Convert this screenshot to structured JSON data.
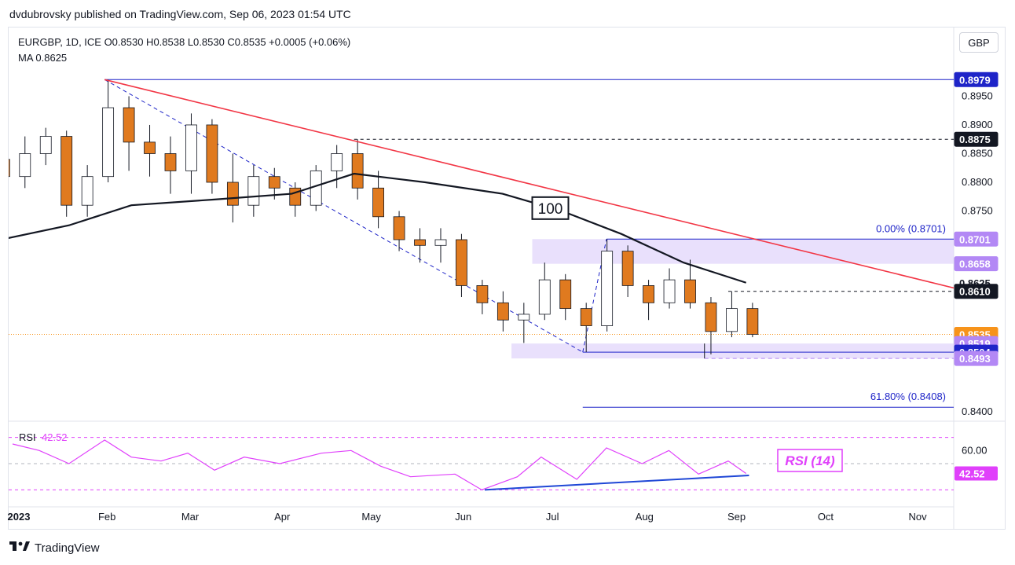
{
  "header": {
    "published": "dvdubrovsky published on TradingView.com, Sep 06, 2023 01:54 UTC",
    "ohlc": "EURGBP, 1D, ICE  O0.8530  H0.8538  L0.8530  C0.8535  +0.0005 (+0.06%)",
    "ma": "MA  0.8625",
    "currency_button": "GBP"
  },
  "footer": {
    "brand": "TradingView"
  },
  "colors": {
    "candle_up": "#ffffff",
    "candle_down": "#e07a1f",
    "wick": "#131722",
    "ma_line": "#131722",
    "trendline": "#f23645",
    "fib": "#1e24c8",
    "zone": "#e1d6fb",
    "rsi": "#e040fb",
    "rsi_support": "#1f47d6"
  },
  "chart_data": {
    "type": "candlestick",
    "symbol": "EURGBP",
    "timeframe": "1D",
    "ylim": [
      0.8385,
      0.9015
    ],
    "y_ticks": [
      "0.8950",
      "0.8900",
      "0.8850",
      "0.8800",
      "0.8750",
      "0.8400"
    ],
    "x_ticks": [
      "2023",
      "Feb",
      "Mar",
      "Apr",
      "May",
      "Jun",
      "Jul",
      "Aug",
      "Sep",
      "Oct",
      "Nov"
    ],
    "price_labels": [
      {
        "value": 0.8979,
        "text": "0.8979",
        "bg": "#1e24c8",
        "fg": "#ffffff"
      },
      {
        "value": 0.8875,
        "text": "0.8875",
        "bg": "#131722",
        "fg": "#ffffff"
      },
      {
        "value": 0.8701,
        "text": "0.8701",
        "bg": "#b388f5",
        "fg": "#ffffff"
      },
      {
        "value": 0.8658,
        "text": "0.8658",
        "bg": "#b388f5",
        "fg": "#ffffff"
      },
      {
        "value": 0.8625,
        "text": "0.8625",
        "bg": "#ffffff",
        "fg": "#131722"
      },
      {
        "value": 0.861,
        "text": "0.8610",
        "bg": "#131722",
        "fg": "#ffffff"
      },
      {
        "value": 0.8535,
        "text": "0.8535",
        "bg": "#f7931a",
        "fg": "#ffffff"
      },
      {
        "value": 0.8519,
        "text": "0.8519",
        "bg": "#b388f5",
        "fg": "#ffffff"
      },
      {
        "value": 0.8504,
        "text": "0.8504",
        "bg": "#1e24c8",
        "fg": "#ffffff"
      },
      {
        "value": 0.8493,
        "text": "0.8493",
        "bg": "#b388f5",
        "fg": "#ffffff"
      }
    ],
    "ma_label": "100",
    "ma_period": 100,
    "ma_value": 0.8625,
    "close": 0.8535,
    "fib_top_label": "0.00% (0.8701)",
    "fib_bottom_label": "61.80% (0.8408)",
    "fib_levels": [
      0.8701,
      0.8408
    ],
    "horizontal_levels": [
      0.8979,
      0.8875,
      0.861,
      0.8504
    ],
    "zones": [
      {
        "from": 0.8658,
        "to": 0.8701
      },
      {
        "from": 0.8493,
        "to": 0.8519
      }
    ],
    "trendline": {
      "from_date": "2023-02-01",
      "from_price": 0.8979,
      "to_date": "2023-11-17",
      "to_price": 0.8612
    },
    "candles_weekly_approx": [
      {
        "week": "2022-12-26",
        "o": 0.884,
        "h": 0.887,
        "l": 0.879,
        "c": 0.881
      },
      {
        "week": "2023-01-02",
        "o": 0.881,
        "h": 0.888,
        "l": 0.879,
        "c": 0.885
      },
      {
        "week": "2023-01-09",
        "o": 0.885,
        "h": 0.8895,
        "l": 0.883,
        "c": 0.888
      },
      {
        "week": "2023-01-16",
        "o": 0.888,
        "h": 0.889,
        "l": 0.874,
        "c": 0.876
      },
      {
        "week": "2023-01-23",
        "o": 0.876,
        "h": 0.883,
        "l": 0.874,
        "c": 0.881
      },
      {
        "week": "2023-01-30",
        "o": 0.881,
        "h": 0.8979,
        "l": 0.88,
        "c": 0.893
      },
      {
        "week": "2023-02-06",
        "o": 0.893,
        "h": 0.895,
        "l": 0.882,
        "c": 0.887
      },
      {
        "week": "2023-02-13",
        "o": 0.887,
        "h": 0.89,
        "l": 0.881,
        "c": 0.885
      },
      {
        "week": "2023-02-20",
        "o": 0.885,
        "h": 0.888,
        "l": 0.878,
        "c": 0.882
      },
      {
        "week": "2023-02-27",
        "o": 0.882,
        "h": 0.892,
        "l": 0.878,
        "c": 0.89
      },
      {
        "week": "2023-03-06",
        "o": 0.89,
        "h": 0.891,
        "l": 0.878,
        "c": 0.88
      },
      {
        "week": "2023-03-13",
        "o": 0.88,
        "h": 0.885,
        "l": 0.873,
        "c": 0.876
      },
      {
        "week": "2023-03-20",
        "o": 0.876,
        "h": 0.883,
        "l": 0.874,
        "c": 0.881
      },
      {
        "week": "2023-03-27",
        "o": 0.881,
        "h": 0.8825,
        "l": 0.877,
        "c": 0.879
      },
      {
        "week": "2023-04-03",
        "o": 0.879,
        "h": 0.88,
        "l": 0.874,
        "c": 0.876
      },
      {
        "week": "2023-04-10",
        "o": 0.876,
        "h": 0.883,
        "l": 0.875,
        "c": 0.882
      },
      {
        "week": "2023-04-17",
        "o": 0.882,
        "h": 0.8865,
        "l": 0.879,
        "c": 0.885
      },
      {
        "week": "2023-04-24",
        "o": 0.885,
        "h": 0.8875,
        "l": 0.877,
        "c": 0.879
      },
      {
        "week": "2023-05-01",
        "o": 0.879,
        "h": 0.882,
        "l": 0.872,
        "c": 0.874
      },
      {
        "week": "2023-05-08",
        "o": 0.874,
        "h": 0.875,
        "l": 0.868,
        "c": 0.87
      },
      {
        "week": "2023-05-15",
        "o": 0.87,
        "h": 0.872,
        "l": 0.866,
        "c": 0.869
      },
      {
        "week": "2023-05-22",
        "o": 0.869,
        "h": 0.872,
        "l": 0.866,
        "c": 0.87
      },
      {
        "week": "2023-05-29",
        "o": 0.87,
        "h": 0.871,
        "l": 0.86,
        "c": 0.862
      },
      {
        "week": "2023-06-05",
        "o": 0.862,
        "h": 0.863,
        "l": 0.857,
        "c": 0.859
      },
      {
        "week": "2023-06-12",
        "o": 0.859,
        "h": 0.861,
        "l": 0.854,
        "c": 0.856
      },
      {
        "week": "2023-06-19",
        "o": 0.856,
        "h": 0.859,
        "l": 0.852,
        "c": 0.857
      },
      {
        "week": "2023-06-26",
        "o": 0.857,
        "h": 0.866,
        "l": 0.856,
        "c": 0.863
      },
      {
        "week": "2023-07-03",
        "o": 0.863,
        "h": 0.864,
        "l": 0.856,
        "c": 0.858
      },
      {
        "week": "2023-07-10",
        "o": 0.858,
        "h": 0.859,
        "l": 0.8504,
        "c": 0.855
      },
      {
        "week": "2023-07-17",
        "o": 0.855,
        "h": 0.8701,
        "l": 0.854,
        "c": 0.868
      },
      {
        "week": "2023-07-24",
        "o": 0.868,
        "h": 0.869,
        "l": 0.86,
        "c": 0.862
      },
      {
        "week": "2023-07-31",
        "o": 0.862,
        "h": 0.863,
        "l": 0.856,
        "c": 0.859
      },
      {
        "week": "2023-08-07",
        "o": 0.859,
        "h": 0.865,
        "l": 0.858,
        "c": 0.863
      },
      {
        "week": "2023-08-14",
        "o": 0.863,
        "h": 0.8665,
        "l": 0.858,
        "c": 0.859
      },
      {
        "week": "2023-08-21",
        "o": 0.859,
        "h": 0.86,
        "l": 0.85,
        "c": 0.854
      },
      {
        "week": "2023-08-28",
        "o": 0.854,
        "h": 0.861,
        "l": 0.853,
        "c": 0.858
      },
      {
        "week": "2023-09-04",
        "o": 0.858,
        "h": 0.859,
        "l": 0.853,
        "c": 0.8535
      }
    ],
    "ma_approx": [
      {
        "date": "2022-12-28",
        "value": 0.87
      },
      {
        "date": "2023-01-20",
        "value": 0.8725
      },
      {
        "date": "2023-02-10",
        "value": 0.876
      },
      {
        "date": "2023-03-10",
        "value": 0.877
      },
      {
        "date": "2023-04-05",
        "value": 0.878
      },
      {
        "date": "2023-04-26",
        "value": 0.8815
      },
      {
        "date": "2023-05-20",
        "value": 0.88
      },
      {
        "date": "2023-06-15",
        "value": 0.878
      },
      {
        "date": "2023-07-05",
        "value": 0.875
      },
      {
        "date": "2023-07-25",
        "value": 0.871
      },
      {
        "date": "2023-08-15",
        "value": 0.866
      },
      {
        "date": "2023-09-05",
        "value": 0.8625
      }
    ],
    "rsi": {
      "label": "RSI",
      "period_label": "RSI (14)",
      "value": "42.52",
      "tick": "60.00",
      "ylim": [
        20,
        80
      ],
      "levels": [
        70,
        50,
        30
      ],
      "values_approx": [
        {
          "date": "2023-01-01",
          "value": 65
        },
        {
          "date": "2023-01-10",
          "value": 60
        },
        {
          "date": "2023-01-20",
          "value": 50
        },
        {
          "date": "2023-02-01",
          "value": 68
        },
        {
          "date": "2023-02-10",
          "value": 55
        },
        {
          "date": "2023-02-20",
          "value": 52
        },
        {
          "date": "2023-03-01",
          "value": 58
        },
        {
          "date": "2023-03-10",
          "value": 45
        },
        {
          "date": "2023-03-20",
          "value": 55
        },
        {
          "date": "2023-04-01",
          "value": 50
        },
        {
          "date": "2023-04-15",
          "value": 58
        },
        {
          "date": "2023-04-25",
          "value": 60
        },
        {
          "date": "2023-05-05",
          "value": 48
        },
        {
          "date": "2023-05-15",
          "value": 40
        },
        {
          "date": "2023-05-30",
          "value": 42
        },
        {
          "date": "2023-06-08",
          "value": 30
        },
        {
          "date": "2023-06-20",
          "value": 40
        },
        {
          "date": "2023-06-28",
          "value": 55
        },
        {
          "date": "2023-07-10",
          "value": 38
        },
        {
          "date": "2023-07-20",
          "value": 62
        },
        {
          "date": "2023-08-01",
          "value": 50
        },
        {
          "date": "2023-08-10",
          "value": 60
        },
        {
          "date": "2023-08-20",
          "value": 42
        },
        {
          "date": "2023-08-30",
          "value": 52
        },
        {
          "date": "2023-09-05",
          "value": 42.52
        }
      ],
      "support_line": {
        "from_date": "2023-06-09",
        "from_value": 30,
        "to_date": "2023-09-06",
        "to_value": 41
      }
    }
  }
}
